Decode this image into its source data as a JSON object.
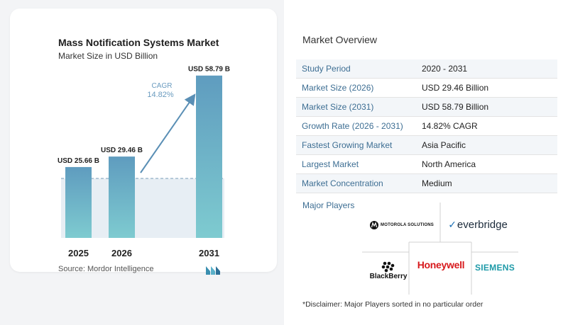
{
  "chart_data": {
    "type": "bar",
    "title": "Mass Notification Systems Market",
    "subtitle": "Market Size in USD Billion",
    "categories": [
      "2025",
      "2026",
      "2031"
    ],
    "values": [
      25.66,
      29.46,
      58.79
    ],
    "data_labels": [
      "USD 25.66 B",
      "USD 29.46 B",
      "USD 58.79 B"
    ],
    "cagr_label": "CAGR",
    "cagr_value": "14.82%",
    "bar_color": "#5f9cbf",
    "gradient_bottom": "#7ecbd0",
    "ylim": [
      0,
      60
    ],
    "grid": false
  },
  "source": "Source:  Mordor Intelligence",
  "overview": {
    "title": "Market Overview",
    "rows": [
      {
        "label": "Study Period",
        "value": "2020 - 2031"
      },
      {
        "label": "Market Size (2026)",
        "value": "USD 29.46 Billion"
      },
      {
        "label": "Market Size (2031)",
        "value": "USD 58.79 Billion"
      },
      {
        "label": "Growth Rate (2026 - 2031)",
        "value": "14.82% CAGR"
      },
      {
        "label": "Fastest Growing Market",
        "value": "Asia Pacific"
      },
      {
        "label": "Largest Market",
        "value": "North America"
      },
      {
        "label": "Market Concentration",
        "value": "Medium"
      }
    ]
  },
  "players": {
    "title": "Major Players",
    "motorola": "MOTOROLA SOLUTIONS",
    "everbridge": "everbridge",
    "blackberry": "BlackBerry",
    "honeywell": "Honeywell",
    "siemens": "SIEMENS"
  },
  "disclaimer": "*Disclaimer: Major Players sorted in no particular order"
}
